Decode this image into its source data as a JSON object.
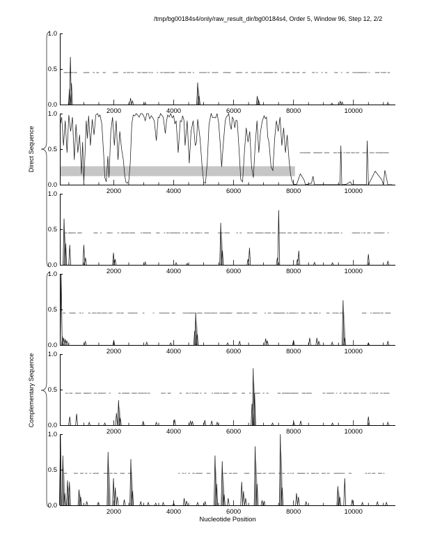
{
  "title": "/tmp/bg00184s4/only/raw_result_dir/bg00184s4, Order 5, Window 96, Step 12, 2/2",
  "xlabel": "Nucleotide Position",
  "group_labels": {
    "direct": "Direct Sequence",
    "complementary": "Complementary Sequence"
  },
  "colors": {
    "line": "#1a1a1a",
    "echo": "#b2b2b2",
    "dash": "#8f8f8f",
    "band": "#c6c6c6",
    "axis": "#000000",
    "brace": "#444444"
  },
  "chart_data": {
    "type": "line",
    "title": "/tmp/bg00184s4/only/raw_result_dir/bg00184s4, Order 5, Window 96, Step 12, 2/2",
    "xlabel": "Nucleotide Position",
    "xlim": [
      200,
      11400
    ],
    "ylim": [
      0,
      1
    ],
    "xticks": [
      2000,
      4000,
      6000,
      8000,
      10000
    ],
    "ytick_labels": [
      "0.0",
      "0.5",
      "1.0"
    ],
    "yticks": [
      0,
      0.5,
      1
    ],
    "minor_tick_step": 500,
    "dash_row_y": 0.45,
    "grid": false,
    "legend": false,
    "panels": [
      {
        "name": "direct-1",
        "group": "Direct Sequence",
        "spikes": [
          [
            520,
            0.22
          ],
          [
            552,
            0.67
          ],
          [
            588,
            0.3
          ],
          [
            2560,
            0.09
          ],
          [
            2625,
            0.05
          ],
          [
            3050,
            0.03
          ],
          [
            4800,
            0.31,
            1
          ],
          [
            4845,
            0.12
          ],
          [
            6790,
            0.12,
            1
          ],
          [
            6835,
            0.05
          ],
          [
            9280,
            0.02
          ],
          [
            9560,
            0.045
          ],
          [
            9625,
            0.035
          ],
          [
            11150,
            0.03
          ]
        ],
        "dash_regions": [
          [
            280,
            11200,
            125
          ]
        ]
      },
      {
        "name": "direct-2",
        "group": "Direct Sequence",
        "band": {
          "x": [
            200,
            8050
          ],
          "y": [
            0.12,
            0.26
          ]
        },
        "series": [
          [
            200,
            0.82
          ],
          [
            260,
            0.95
          ],
          [
            320,
            0.55
          ],
          [
            380,
            0.9
          ],
          [
            440,
            0.45
          ],
          [
            500,
            0.98
          ],
          [
            560,
            0.75
          ],
          [
            620,
            0.95
          ],
          [
            680,
            0.35
          ],
          [
            740,
            0.85
          ],
          [
            800,
            0.45
          ],
          [
            860,
            0.7
          ],
          [
            920,
            0.15
          ],
          [
            960,
            0.6
          ],
          [
            1000,
            0.03
          ],
          [
            1040,
            0.45
          ],
          [
            1080,
            0.9
          ],
          [
            1120,
            0.65
          ],
          [
            1160,
            0.97
          ],
          [
            1220,
            0.55
          ],
          [
            1280,
            0.92
          ],
          [
            1340,
            0.7
          ],
          [
            1400,
            0.98
          ],
          [
            1460,
            1.0
          ],
          [
            1540,
            0.98
          ],
          [
            1600,
            0.85
          ],
          [
            1660,
            0.45
          ],
          [
            1700,
            0.1
          ],
          [
            1750,
            0.04
          ],
          [
            1800,
            0.4
          ],
          [
            1840,
            0.1
          ],
          [
            1900,
            0.75
          ],
          [
            1960,
            0.95
          ],
          [
            2020,
            0.55
          ],
          [
            2080,
            0.9
          ],
          [
            2140,
            0.35
          ],
          [
            2200,
            0.75
          ],
          [
            2260,
            0.5
          ],
          [
            2320,
            0.35
          ],
          [
            2360,
            0.15
          ],
          [
            2400,
            0.04
          ],
          [
            2450,
            0.02
          ],
          [
            2500,
            0.05
          ],
          [
            2550,
            0.3
          ],
          [
            2600,
            0.85
          ],
          [
            2650,
            0.98
          ],
          [
            2750,
            1.0
          ],
          [
            2850,
            0.95
          ],
          [
            2950,
            1.0
          ],
          [
            3050,
            0.9
          ],
          [
            3150,
            1.0
          ],
          [
            3250,
            0.97
          ],
          [
            3350,
            0.9
          ],
          [
            3420,
            0.62
          ],
          [
            3480,
            0.95
          ],
          [
            3560,
            1.0
          ],
          [
            3650,
            0.95
          ],
          [
            3720,
            0.72
          ],
          [
            3800,
            0.98
          ],
          [
            3900,
            1.0
          ],
          [
            4000,
            0.97
          ],
          [
            4080,
            0.9
          ],
          [
            4150,
            0.45
          ],
          [
            4220,
            0.9
          ],
          [
            4300,
            0.97
          ],
          [
            4380,
            0.55
          ],
          [
            4450,
            0.9
          ],
          [
            4520,
            0.3
          ],
          [
            4580,
            0.75
          ],
          [
            4650,
            0.9
          ],
          [
            4720,
            0.55
          ],
          [
            4800,
            0.92
          ],
          [
            4880,
            0.65
          ],
          [
            4950,
            0.25
          ],
          [
            5000,
            0.04
          ],
          [
            5060,
            0.02
          ],
          [
            5120,
            0.3
          ],
          [
            5180,
            0.85
          ],
          [
            5250,
            1.0
          ],
          [
            5350,
            0.95
          ],
          [
            5450,
            1.0
          ],
          [
            5550,
            0.6
          ],
          [
            5600,
            0.25
          ],
          [
            5660,
            0.6
          ],
          [
            5720,
            0.9
          ],
          [
            5800,
            0.97
          ],
          [
            5880,
            0.85
          ],
          [
            5960,
            0.95
          ],
          [
            6040,
            0.8
          ],
          [
            6120,
            0.9
          ],
          [
            6180,
            0.5
          ],
          [
            6240,
            0.07
          ],
          [
            6300,
            0.04
          ],
          [
            6360,
            0.45
          ],
          [
            6420,
            0.8
          ],
          [
            6480,
            0.6
          ],
          [
            6540,
            0.75
          ],
          [
            6600,
            0.25
          ],
          [
            6660,
            0.1
          ],
          [
            6720,
            0.55
          ],
          [
            6780,
            0.9
          ],
          [
            6840,
            0.45
          ],
          [
            6900,
            0.75
          ],
          [
            6960,
            0.9
          ],
          [
            7020,
            0.97
          ],
          [
            7100,
            0.95
          ],
          [
            7180,
            0.6
          ],
          [
            7250,
            0.25
          ],
          [
            7310,
            0.2
          ],
          [
            7370,
            0.65
          ],
          [
            7430,
            0.9
          ],
          [
            7490,
            0.75
          ],
          [
            7550,
            0.95
          ],
          [
            7610,
            0.55
          ],
          [
            7670,
            0.8
          ],
          [
            7730,
            0.45
          ],
          [
            7790,
            0.7
          ],
          [
            7850,
            0.35
          ],
          [
            7900,
            0.15
          ],
          [
            7950,
            0.05
          ],
          [
            8000,
            0.01
          ],
          [
            8100,
            0.0
          ],
          [
            8350,
            0.07
          ],
          [
            8400,
            0.0
          ],
          [
            8600,
            0.02
          ],
          [
            8650,
            0.12
          ],
          [
            8700,
            0.0
          ],
          [
            9550,
            0.0
          ],
          [
            9580,
            0.55
          ],
          [
            9610,
            0.0
          ],
          [
            9900,
            0.04
          ],
          [
            9950,
            0.0
          ],
          [
            10430,
            0.0
          ],
          [
            10460,
            0.62
          ],
          [
            10500,
            0.0
          ],
          [
            10950,
            0.07
          ],
          [
            11000,
            0.0
          ],
          [
            11100,
            0.1
          ],
          [
            11150,
            0.0
          ],
          [
            11300,
            0.0
          ]
        ],
        "dash_regions": [
          [
            8120,
            11250,
            48
          ]
        ]
      },
      {
        "name": "direct-3",
        "group": "Direct Sequence",
        "spikes": [
          [
            340,
            0.65,
            1
          ],
          [
            395,
            0.3
          ],
          [
            530,
            0.28
          ],
          [
            1000,
            0.28
          ],
          [
            1055,
            0.1
          ],
          [
            1990,
            0.17
          ],
          [
            2045,
            0.08
          ],
          [
            3050,
            0.04
          ],
          [
            4080,
            0.03
          ],
          [
            4450,
            0.02
          ],
          [
            5570,
            0.59,
            1
          ],
          [
            5625,
            0.2
          ],
          [
            6480,
            0.08
          ],
          [
            6530,
            0.24
          ],
          [
            7460,
            0.1
          ],
          [
            7505,
            0.77
          ],
          [
            8130,
            0.08
          ],
          [
            8175,
            0.2
          ],
          [
            8700,
            0.035
          ],
          [
            9300,
            0.03
          ],
          [
            10500,
            0.15
          ],
          [
            11150,
            0.05
          ]
        ],
        "dash_regions": [
          [
            300,
            11200,
            130
          ]
        ]
      },
      {
        "name": "complementary-1",
        "group": "Complementary Sequence",
        "spikes": [
          [
            245,
            1.0
          ],
          [
            285,
            0.12
          ],
          [
            330,
            0.1
          ],
          [
            385,
            0.08
          ],
          [
            435,
            0.06
          ],
          [
            1050,
            0.05
          ],
          [
            2000,
            0.06
          ],
          [
            3100,
            0.04
          ],
          [
            3900,
            0.03
          ],
          [
            4700,
            0.2
          ],
          [
            4735,
            0.45,
            1
          ],
          [
            4785,
            0.15
          ],
          [
            5800,
            0.03
          ],
          [
            6200,
            0.05
          ],
          [
            7070,
            0.09
          ],
          [
            7125,
            0.06
          ],
          [
            8000,
            0.06
          ],
          [
            8540,
            0.1
          ],
          [
            8780,
            0.1
          ],
          [
            8845,
            0.05
          ],
          [
            9290,
            0.04
          ],
          [
            9655,
            0.63,
            1
          ],
          [
            9705,
            0.1
          ],
          [
            10500,
            0.03
          ],
          [
            11150,
            0.05
          ]
        ],
        "dash_regions": [
          [
            250,
            11200,
            120
          ]
        ]
      },
      {
        "name": "complementary-2",
        "group": "Complementary Sequence",
        "spikes": [
          [
            530,
            0.12
          ],
          [
            760,
            0.16
          ],
          [
            1180,
            0.04
          ],
          [
            1700,
            0.03
          ],
          [
            2090,
            0.17
          ],
          [
            2160,
            0.35,
            1
          ],
          [
            2215,
            0.1
          ],
          [
            2980,
            0.05
          ],
          [
            3420,
            0.04
          ],
          [
            4030,
            0.08
          ],
          [
            4560,
            0.06
          ],
          [
            4625,
            0.05
          ],
          [
            5040,
            0.07
          ],
          [
            5270,
            0.06
          ],
          [
            5450,
            0.04
          ],
          [
            6615,
            0.3
          ],
          [
            6655,
            0.8,
            1
          ],
          [
            6700,
            0.45
          ],
          [
            7300,
            0.03
          ],
          [
            8010,
            0.04
          ],
          [
            8240,
            0.06
          ],
          [
            9300,
            0.03
          ],
          [
            10500,
            0.12
          ],
          [
            11150,
            0.04
          ]
        ],
        "dash_regions": [
          [
            300,
            11250,
            135
          ]
        ]
      },
      {
        "name": "complementary-3",
        "group": "Complementary Sequence",
        "spikes": [
          [
            220,
            1.0
          ],
          [
            300,
            0.7,
            1
          ],
          [
            365,
            0.17
          ],
          [
            455,
            0.35,
            1
          ],
          [
            520,
            0.33
          ],
          [
            840,
            0.22,
            1
          ],
          [
            895,
            0.12
          ],
          [
            1100,
            0.05
          ],
          [
            1480,
            0.04
          ],
          [
            1810,
            0.75,
            1
          ],
          [
            1990,
            0.38
          ],
          [
            2050,
            0.25
          ],
          [
            2120,
            0.12
          ],
          [
            2350,
            0.08
          ],
          [
            2570,
            0.65,
            1
          ],
          [
            2625,
            0.2
          ],
          [
            2900,
            0.05
          ],
          [
            3150,
            0.04
          ],
          [
            3400,
            0.03
          ],
          [
            3650,
            0.04
          ],
          [
            4000,
            0.03
          ],
          [
            4350,
            0.1
          ],
          [
            4430,
            0.06
          ],
          [
            4800,
            0.04
          ],
          [
            5050,
            0.05
          ],
          [
            5380,
            0.7,
            1
          ],
          [
            5435,
            0.3
          ],
          [
            5620,
            0.62,
            1
          ],
          [
            5685,
            0.15
          ],
          [
            5820,
            0.1
          ],
          [
            6270,
            0.33
          ],
          [
            6330,
            0.2
          ],
          [
            6400,
            0.1
          ],
          [
            6720,
            0.83,
            1
          ],
          [
            6785,
            0.3
          ],
          [
            6950,
            0.07
          ],
          [
            7020,
            0.06
          ],
          [
            7560,
            1.0,
            1
          ],
          [
            7620,
            0.25
          ],
          [
            8100,
            0.17
          ],
          [
            8165,
            0.12
          ],
          [
            8420,
            0.05
          ],
          [
            9480,
            0.27,
            1
          ],
          [
            9545,
            0.12
          ],
          [
            9710,
            0.38
          ],
          [
            9960,
            0.08
          ],
          [
            10300,
            0.04
          ],
          [
            10800,
            0.05
          ],
          [
            11100,
            0.04
          ]
        ],
        "dash_regions": [
          [
            180,
            2630,
            30
          ],
          [
            4150,
            11050,
            85
          ]
        ]
      }
    ]
  }
}
